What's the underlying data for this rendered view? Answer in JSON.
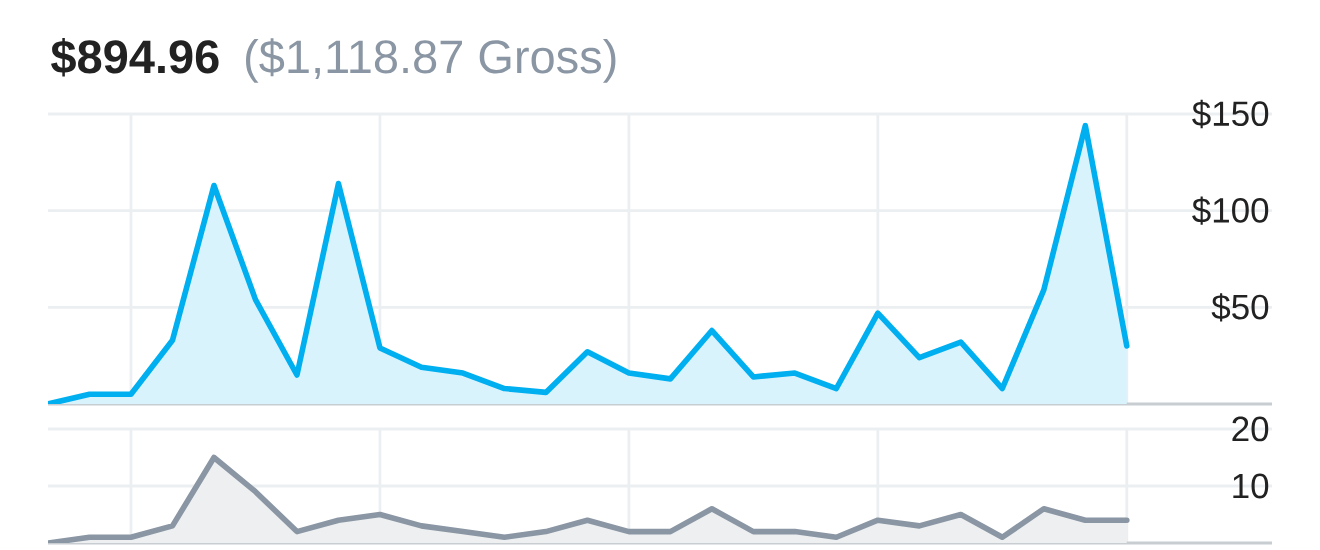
{
  "chart_data": [
    {
      "type": "area",
      "title": "$894.96",
      "subtitle": "($1,118.87 Gross)",
      "categories": [
        null,
        null,
        null,
        null,
        null,
        null,
        null,
        null,
        null,
        null,
        null,
        null,
        null,
        null,
        null,
        null,
        null,
        null,
        null,
        null,
        null,
        null,
        null,
        null,
        null,
        null,
        null
      ],
      "values": [
        0,
        5,
        5,
        33,
        113,
        54,
        15,
        114,
        29,
        19,
        16,
        8,
        6,
        27,
        16,
        13,
        38,
        14,
        16,
        8,
        47,
        24,
        32,
        8,
        59,
        144,
        30
      ],
      "color": "#00aff0",
      "ylim": [
        0,
        150
      ],
      "yticks": [
        {
          "value": 50,
          "label": "$50"
        },
        {
          "value": 100,
          "label": "$100"
        },
        {
          "value": 150,
          "label": "$150"
        }
      ],
      "grid": true,
      "tick_labels": "y"
    },
    {
      "type": "area",
      "categories": [
        null,
        null,
        null,
        null,
        null,
        null,
        null,
        null,
        null,
        null,
        null,
        null,
        null,
        null,
        null,
        null,
        null,
        null,
        null,
        null,
        null,
        null,
        null,
        null,
        null,
        null,
        null
      ],
      "values": [
        0,
        1,
        1,
        3,
        15,
        9,
        2,
        4,
        5,
        3,
        2,
        1,
        2,
        4,
        2,
        2,
        6,
        2,
        2,
        1,
        4,
        3,
        5,
        1,
        6,
        4,
        4
      ],
      "color": "#8a96a3",
      "ylim": [
        0,
        20
      ],
      "yticks": [
        10,
        20
      ],
      "grid": true,
      "tick_labels": "y"
    }
  ]
}
